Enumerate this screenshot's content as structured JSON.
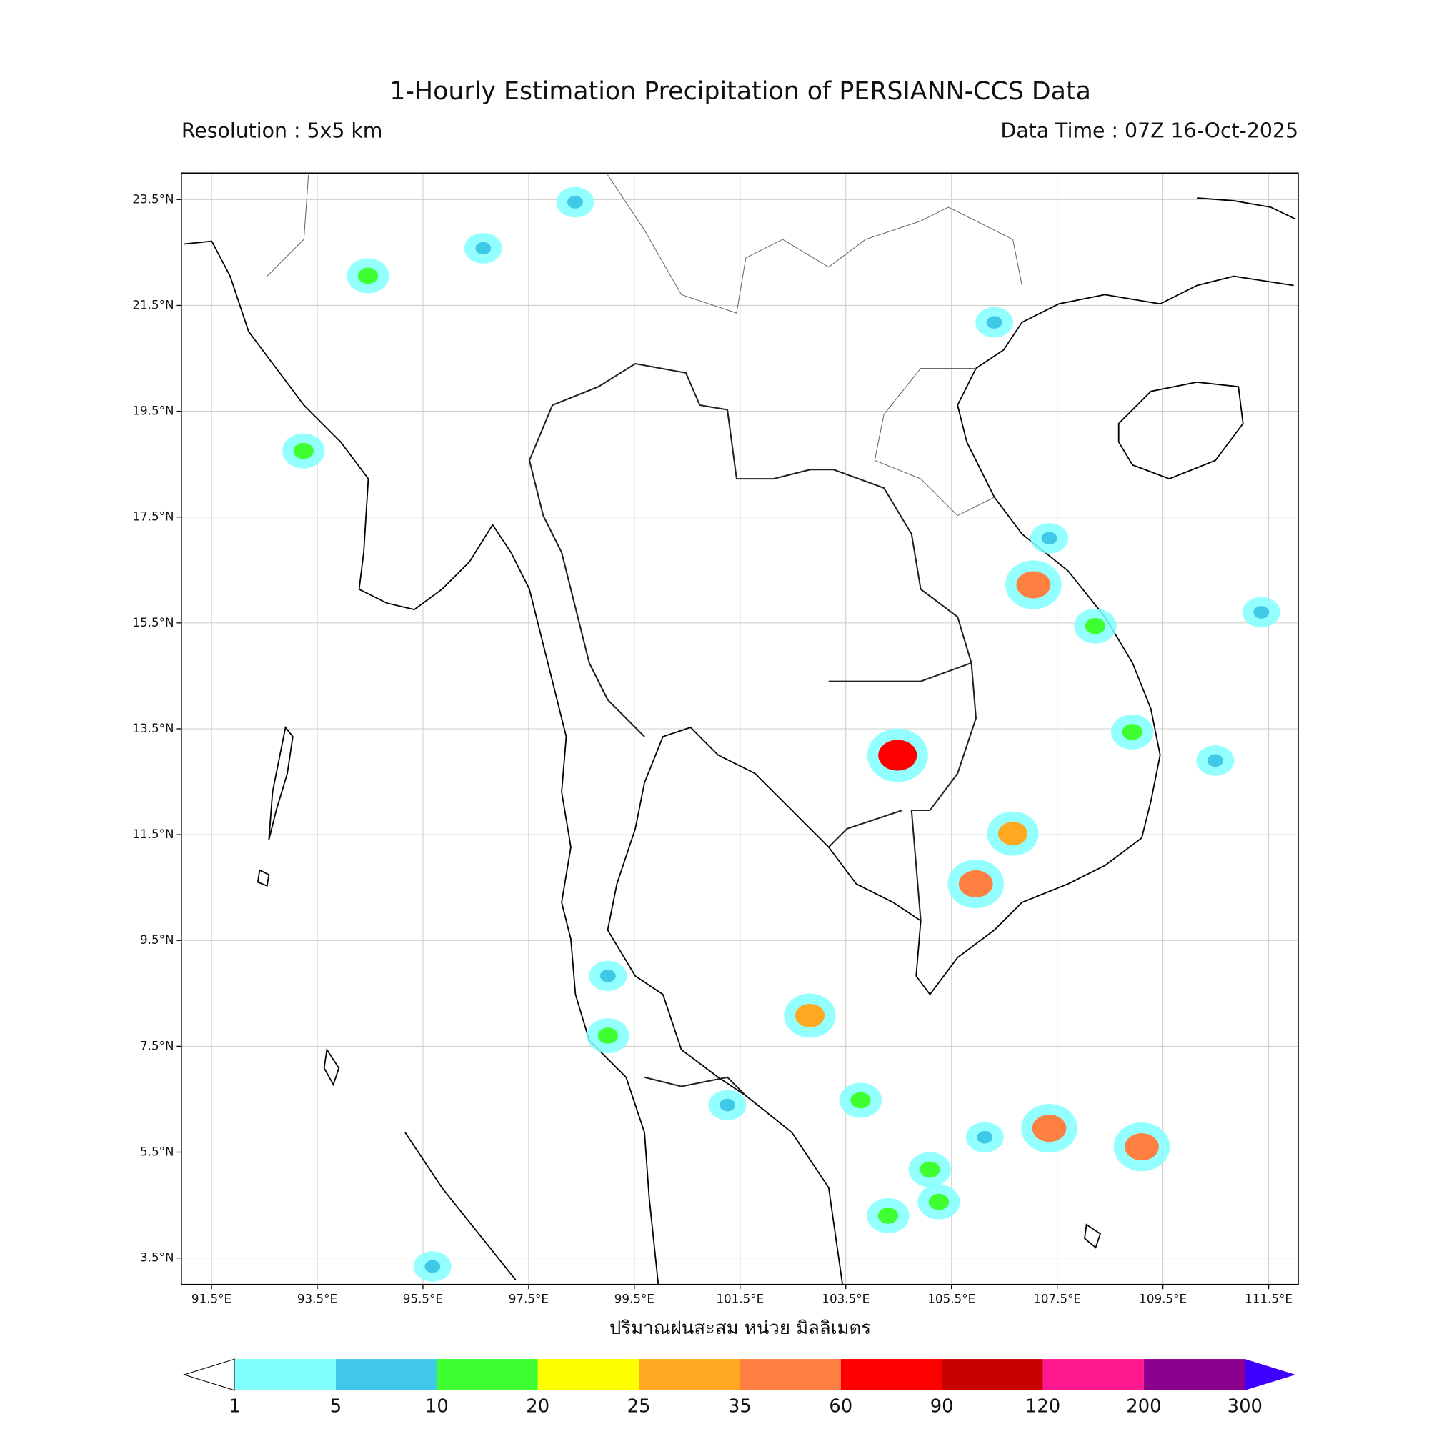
{
  "header": {
    "title": "1-Hourly Estimation Precipitation of PERSIANN-CCS Data",
    "resolution": "Resolution : 5x5 km",
    "data_time": "Data Time : 07Z 16-Oct-2025"
  },
  "map": {
    "xlim": [
      90.93,
      112.06
    ],
    "ylim": [
      3.0,
      24.0
    ],
    "xticks": [
      {
        "value": 91.5,
        "label": "91.5°E"
      },
      {
        "value": 93.5,
        "label": "93.5°E"
      },
      {
        "value": 95.5,
        "label": "95.5°E"
      },
      {
        "value": 97.5,
        "label": "97.5°E"
      },
      {
        "value": 99.5,
        "label": "99.5°E"
      },
      {
        "value": 101.5,
        "label": "101.5°E"
      },
      {
        "value": 103.5,
        "label": "103.5°E"
      },
      {
        "value": 105.5,
        "label": "105.5°E"
      },
      {
        "value": 107.5,
        "label": "107.5°E"
      },
      {
        "value": 109.5,
        "label": "109.5°E"
      },
      {
        "value": 111.5,
        "label": "111.5°E"
      }
    ],
    "yticks": [
      {
        "value": 3.5,
        "label": "3.5°N"
      },
      {
        "value": 5.5,
        "label": "5.5°N"
      },
      {
        "value": 7.5,
        "label": "7.5°N"
      },
      {
        "value": 9.5,
        "label": "9.5°N"
      },
      {
        "value": 11.5,
        "label": "11.5°N"
      },
      {
        "value": 13.5,
        "label": "13.5°N"
      },
      {
        "value": 15.5,
        "label": "15.5°N"
      },
      {
        "value": 17.5,
        "label": "17.5°N"
      },
      {
        "value": 19.5,
        "label": "19.5°N"
      },
      {
        "value": 21.5,
        "label": "21.5°N"
      },
      {
        "value": 23.5,
        "label": "23.5°N"
      }
    ],
    "grid": true,
    "grid_color": "#cccccc",
    "xlabel": "ปริมาณฝนสะสม หน่วย มิลลิเมตร",
    "rain_cells": {
      "lon": [
        104.48,
        107.05,
        106.66,
        102.82,
        108.92,
        108.22,
        93.24,
        99.0,
        105.96,
        105.09,
        104.3,
        105.26,
        103.78,
        111.36,
        106.31,
        98.38,
        96.64,
        94.46,
        95.68,
        99.0,
        101.26,
        107.35,
        106.13,
        110.49,
        107.35,
        109.1
      ],
      "lat": [
        13.0,
        16.22,
        11.52,
        8.08,
        13.44,
        15.44,
        18.75,
        7.7,
        10.57,
        5.17,
        4.3,
        4.56,
        6.48,
        15.7,
        21.18,
        23.45,
        22.58,
        22.06,
        3.34,
        8.83,
        6.39,
        17.1,
        5.78,
        12.9,
        5.95,
        5.6
      ],
      "values": [
        60,
        35,
        25,
        25,
        10,
        10,
        15,
        15,
        35,
        10,
        10,
        10,
        10,
        5,
        5,
        5,
        5,
        10,
        5,
        5,
        5,
        5,
        5,
        5,
        35,
        35
      ]
    }
  },
  "colorbar": {
    "levels": [
      1,
      5,
      10,
      20,
      25,
      35,
      60,
      90,
      120,
      200,
      300
    ],
    "colors": [
      "#80ffff",
      "#40c8e8",
      "#40ff30",
      "#ffff00",
      "#ffa820",
      "#ff8040",
      "#ff0000",
      "#c80000",
      "#ff1890",
      "#8c0090"
    ],
    "under_color": "#ffffff",
    "over_color": "#4000ff"
  }
}
